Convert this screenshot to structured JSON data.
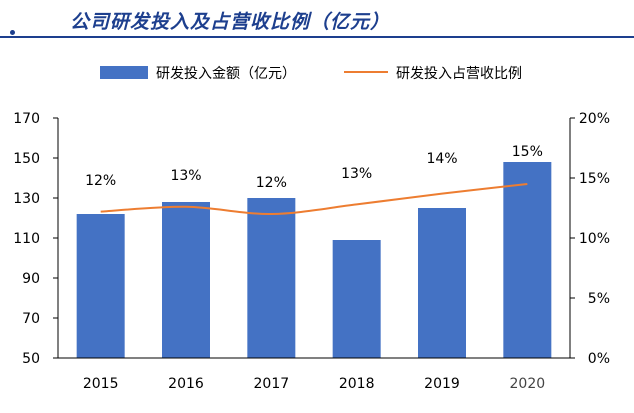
{
  "title": "公司研发投入及占营收比例（亿元）",
  "chart_data": {
    "type": "bar",
    "categories": [
      "2015",
      "2016",
      "2017",
      "2018",
      "2019",
      "2020"
    ],
    "series": [
      {
        "name": "研发投入金额（亿元）",
        "type": "bar",
        "axis": "left",
        "values": [
          122,
          128,
          130,
          109,
          125,
          148
        ],
        "color": "#4472c4"
      },
      {
        "name": "研发投入占营收比例",
        "type": "line",
        "axis": "right",
        "values": [
          12.2,
          12.6,
          12.0,
          12.8,
          13.7,
          14.5
        ],
        "labels": [
          "12%",
          "13%",
          "12%",
          "13%",
          "14%",
          "15%"
        ],
        "color": "#ed7d31"
      }
    ],
    "left_axis": {
      "ylim": [
        50,
        170
      ],
      "ticks": [
        "50",
        "70",
        "90",
        "110",
        "130",
        "150",
        "170"
      ]
    },
    "right_axis": {
      "ylim": [
        0,
        20
      ],
      "ticks": [
        "0%",
        "5%",
        "10%",
        "15%",
        "20%"
      ]
    },
    "grid": false,
    "legend": "top"
  }
}
